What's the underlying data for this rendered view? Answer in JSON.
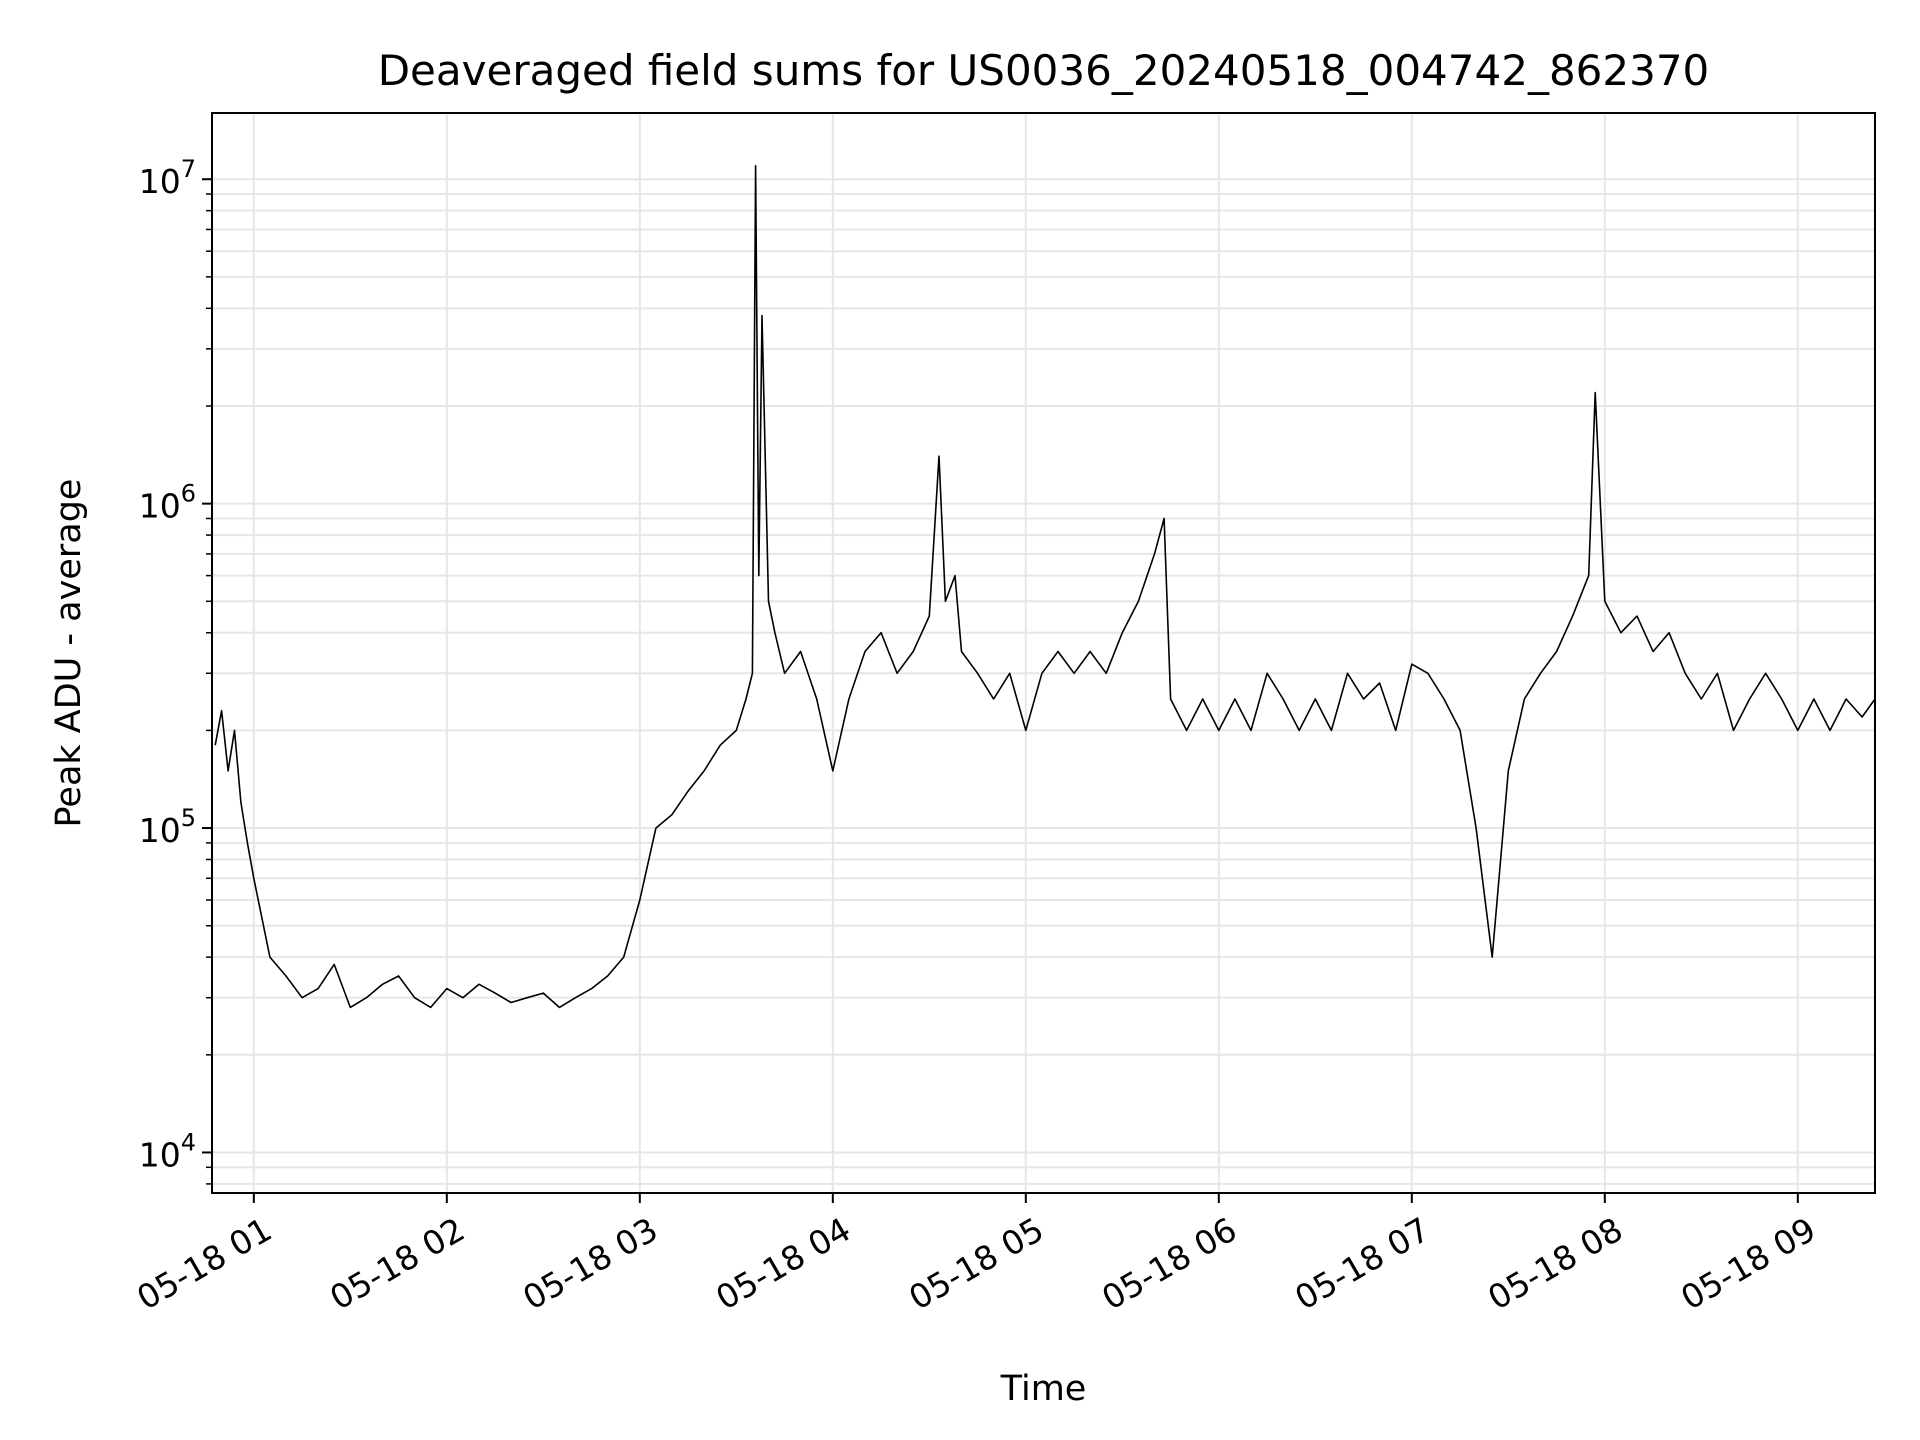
{
  "chart_data": {
    "type": "line",
    "title": "Deaveraged field sums for US0036_20240518_004742_862370",
    "xlabel": "Time",
    "ylabel": "Peak ADU - average",
    "yscale": "log",
    "ylim": [
      7500,
      16000000
    ],
    "xlim": [
      "2024-05-18 00:47",
      "2024-05-18 09:24"
    ],
    "grid": true,
    "line_color": "#000000",
    "grid_color": "#e6e6e6",
    "x_ticks": [
      {
        "label": "05-18 01",
        "value": "2024-05-18 01:00"
      },
      {
        "label": "05-18 02",
        "value": "2024-05-18 02:00"
      },
      {
        "label": "05-18 03",
        "value": "2024-05-18 03:00"
      },
      {
        "label": "05-18 04",
        "value": "2024-05-18 04:00"
      },
      {
        "label": "05-18 05",
        "value": "2024-05-18 05:00"
      },
      {
        "label": "05-18 06",
        "value": "2024-05-18 06:00"
      },
      {
        "label": "05-18 07",
        "value": "2024-05-18 07:00"
      },
      {
        "label": "05-18 08",
        "value": "2024-05-18 08:00"
      },
      {
        "label": "05-18 09",
        "value": "2024-05-18 09:00"
      }
    ],
    "y_ticks": [
      {
        "value": 10000,
        "base": "10",
        "exp": "4"
      },
      {
        "value": 100000,
        "base": "10",
        "exp": "5"
      },
      {
        "value": 1000000,
        "base": "10",
        "exp": "6"
      },
      {
        "value": 10000000,
        "base": "10",
        "exp": "7"
      }
    ],
    "series": [
      {
        "x": [
          "00:48",
          "00:50",
          "00:52",
          "00:54",
          "00:56",
          "00:58",
          "01:00",
          "01:05",
          "01:10",
          "01:15",
          "01:20",
          "01:25",
          "01:30",
          "01:35",
          "01:40",
          "01:45",
          "01:50",
          "01:55",
          "02:00",
          "02:05",
          "02:10",
          "02:15",
          "02:20",
          "02:25",
          "02:30",
          "02:35",
          "02:40",
          "02:45",
          "02:50",
          "02:55",
          "03:00",
          "03:05",
          "03:10",
          "03:15",
          "03:20",
          "03:25",
          "03:30",
          "03:33",
          "03:35",
          "03:36",
          "03:37",
          "03:38",
          "03:40",
          "03:42",
          "03:45",
          "03:50",
          "03:55",
          "04:00",
          "04:05",
          "04:10",
          "04:15",
          "04:20",
          "04:25",
          "04:30",
          "04:33",
          "04:35",
          "04:38",
          "04:40",
          "04:45",
          "04:50",
          "04:55",
          "05:00",
          "05:05",
          "05:10",
          "05:15",
          "05:20",
          "05:25",
          "05:30",
          "05:35",
          "05:40",
          "05:43",
          "05:45",
          "05:50",
          "05:55",
          "06:00",
          "06:05",
          "06:10",
          "06:15",
          "06:20",
          "06:25",
          "06:30",
          "06:35",
          "06:40",
          "06:45",
          "06:50",
          "06:55",
          "07:00",
          "07:05",
          "07:10",
          "07:15",
          "07:20",
          "07:25",
          "07:30",
          "07:35",
          "07:40",
          "07:45",
          "07:50",
          "07:55",
          "07:57",
          "08:00",
          "08:05",
          "08:10",
          "08:15",
          "08:20",
          "08:25",
          "08:30",
          "08:35",
          "08:40",
          "08:45",
          "08:50",
          "08:55",
          "09:00",
          "09:05",
          "09:10",
          "09:15",
          "09:20",
          "09:24"
        ],
        "y": [
          180000,
          230000,
          150000,
          200000,
          120000,
          90000,
          70000,
          40000,
          35000,
          30000,
          32000,
          38000,
          28000,
          30000,
          33000,
          35000,
          30000,
          28000,
          32000,
          30000,
          33000,
          31000,
          29000,
          30000,
          31000,
          28000,
          30000,
          32000,
          35000,
          40000,
          60000,
          100000,
          110000,
          130000,
          150000,
          180000,
          200000,
          250000,
          300000,
          11000000,
          600000,
          3800000,
          500000,
          400000,
          300000,
          350000,
          250000,
          150000,
          250000,
          350000,
          400000,
          300000,
          350000,
          450000,
          1400000,
          500000,
          600000,
          350000,
          300000,
          250000,
          300000,
          200000,
          300000,
          350000,
          300000,
          350000,
          300000,
          400000,
          500000,
          700000,
          900000,
          250000,
          200000,
          250000,
          200000,
          250000,
          200000,
          300000,
          250000,
          200000,
          250000,
          200000,
          300000,
          250000,
          280000,
          200000,
          320000,
          300000,
          250000,
          200000,
          100000,
          40000,
          150000,
          250000,
          300000,
          350000,
          450000,
          600000,
          2200000,
          500000,
          400000,
          450000,
          350000,
          400000,
          300000,
          250000,
          300000,
          200000,
          250000,
          300000,
          250000,
          200000,
          250000,
          200000,
          250000,
          220000,
          250000
        ]
      }
    ]
  }
}
